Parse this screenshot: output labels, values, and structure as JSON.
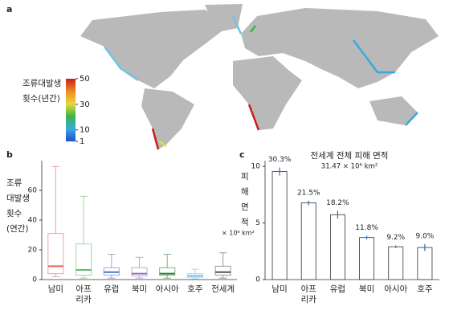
{
  "chart_data": [
    {
      "type": "map",
      "panel": "a",
      "colorbar_title": "조류대발생\n횟수(년간)",
      "clim": [
        1,
        50
      ],
      "cticks": [
        1,
        10,
        30,
        50
      ]
    },
    {
      "type": "box",
      "panel": "b",
      "ylabel": "조류\n대발생\n횟수\n(연간)",
      "categories": [
        "남미",
        "아프\n리카",
        "유럽",
        "북미",
        "아시아",
        "호주",
        "전세계"
      ],
      "boxes": [
        {
          "min": 2,
          "q1": 4,
          "median": 9,
          "q3": 31,
          "max": 76,
          "color": "#e06666"
        },
        {
          "min": 1,
          "q1": 3,
          "median": 6.5,
          "q3": 24,
          "max": 56,
          "color": "#66bb66"
        },
        {
          "min": 1,
          "q1": 3,
          "median": 5,
          "q3": 8,
          "max": 17,
          "color": "#4a78c0"
        },
        {
          "min": 1,
          "q1": 2.5,
          "median": 4,
          "q3": 8,
          "max": 15,
          "color": "#9a70b8"
        },
        {
          "min": 1,
          "q1": 3,
          "median": 4,
          "q3": 8,
          "max": 17,
          "color": "#2e7d3a"
        },
        {
          "min": 0.5,
          "q1": 1.5,
          "median": 2.5,
          "q3": 4,
          "max": 7,
          "color": "#6ec3e8"
        },
        {
          "min": 1,
          "q1": 3,
          "median": 5,
          "q3": 9,
          "max": 18,
          "color": "#555555"
        }
      ],
      "ylim": [
        0,
        80
      ],
      "yticks": [
        0,
        20,
        40,
        60
      ]
    },
    {
      "type": "bar",
      "panel": "c",
      "title": "전세계 전체 피해 면적",
      "subtitle": "31.47 × 10⁶ km²",
      "ylabel": "피\n해\n면\n적",
      "yunit": "× 10⁶ km²",
      "categories": [
        "남미",
        "아프\n리카",
        "유럽",
        "북미",
        "아시아",
        "호주"
      ],
      "values": [
        9.54,
        6.77,
        5.73,
        3.71,
        2.9,
        2.83
      ],
      "errors": [
        0.35,
        0.2,
        0.35,
        0.15,
        0.12,
        0.3
      ],
      "percent_labels": [
        "30.3%",
        "21.5%",
        "18.2%",
        "11.8%",
        "9.2%",
        "9.0%"
      ],
      "color": "#ffffff",
      "error_color": "#2a6fb8",
      "ylim": [
        0,
        10.5
      ],
      "yticks": [
        0,
        5,
        10
      ]
    }
  ]
}
